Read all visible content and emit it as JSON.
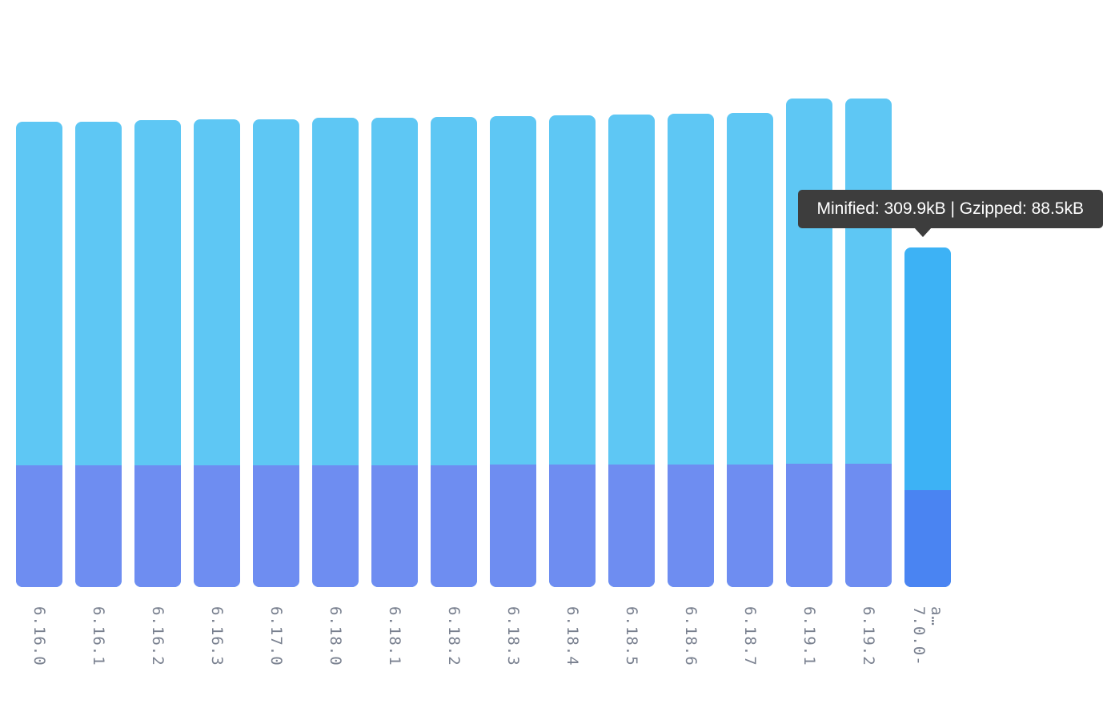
{
  "tooltip": {
    "text": "Minified: 309.9kB | Gzipped: 88.5kB"
  },
  "chart_data": {
    "type": "bar",
    "stacked": true,
    "title": "",
    "xlabel": "",
    "ylabel": "",
    "ylim": [
      0,
      460
    ],
    "grid": false,
    "legend_position": "none",
    "categories": [
      "6.16.0",
      "6.16.1",
      "6.16.2",
      "6.16.3",
      "6.17.0",
      "6.18.0",
      "6.18.1",
      "6.18.2",
      "6.18.3",
      "6.18.4",
      "6.18.5",
      "6.18.6",
      "6.18.7",
      "6.19.1",
      "6.19.2",
      "7.0.0-a…"
    ],
    "series": [
      {
        "name": "Minified (kB)",
        "values": [
          424.7,
          425.0,
          426.0,
          426.9,
          427.2,
          428.0,
          428.7,
          429.0,
          429.5,
          430.3,
          431.5,
          431.8,
          432.5,
          445.9,
          445.9,
          309.9
        ]
      },
      {
        "name": "Gzipped (kB)",
        "values": [
          111.1,
          111.1,
          111.2,
          111.2,
          111.3,
          111.3,
          111.4,
          111.4,
          111.5,
          111.5,
          111.6,
          111.6,
          111.7,
          112.5,
          112.5,
          88.5
        ]
      }
    ],
    "hovered_index": 15,
    "hovered_tooltip": "Minified: 309.9kB | Gzipped: 88.5kB",
    "colors": {
      "minified": "#5ec7f4",
      "gzipped": "#6e8df1",
      "minified_hover": "#3db2f5",
      "gzipped_hover": "#4a84f2",
      "tooltip_bg": "#3d3d3d",
      "tooltip_text": "#ffffff",
      "label_text": "#79808f"
    }
  }
}
